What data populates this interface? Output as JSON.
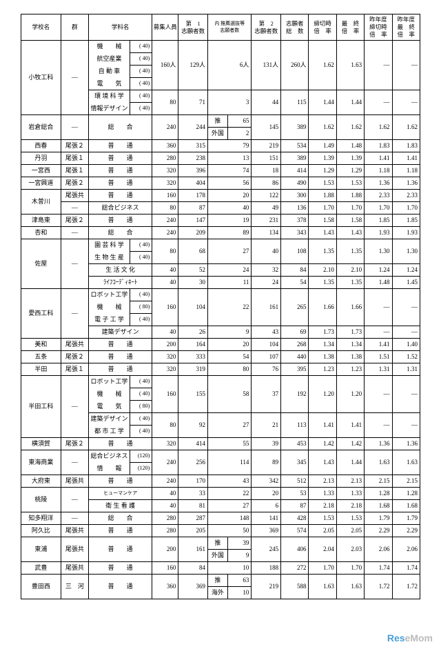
{
  "headers": {
    "school": "学校名",
    "group": "群",
    "dept": "学科名",
    "capacity": "募集人員",
    "app1": "第　1\n志願者数",
    "innerRec": "内 推薦選抜等\n志願者数",
    "app2": "第　2\n志願者数",
    "totalApp": "志願者\n総　数",
    "deadRate": "締切時\n倍　率",
    "finalRate": "最　終\n倍　率",
    "prevDead": "昨年度\n締切時\n倍　率",
    "prevFinal": "昨年度\n最　終\n倍　率"
  },
  "rows": [
    {
      "school": "小牧工科",
      "group": "—",
      "depts": [
        {
          "name": "機　　械",
          "cap": "( 40)"
        },
        {
          "name": "航空産業",
          "cap": "( 40)"
        },
        {
          "name": "自 動 車",
          "cap": "( 40)"
        },
        {
          "name": "電　　気",
          "cap": "( 40)"
        }
      ],
      "capSum": "160人",
      "a1": "129人",
      "rec": "6人",
      "a2": "131人",
      "tot": "260人",
      "dr": "1.62",
      "fr": "1.63",
      "pd": "—",
      "pf": "—"
    },
    {
      "depts": [
        {
          "name": "環 境 科 学",
          "cap": "( 40)"
        },
        {
          "name": "情報デザイン",
          "cap": "( 40)"
        }
      ],
      "capSum": "80",
      "a1": "71",
      "rec": "3",
      "a2": "44",
      "tot": "115",
      "dr": "1.44",
      "fr": "1.44",
      "pd": "—",
      "pf": "—"
    },
    {
      "school": "岩倉総合",
      "group": "—",
      "dept": "総　　合",
      "cap": "240",
      "a1": "244",
      "rec": [
        [
          "推",
          "65"
        ],
        [
          "外国",
          "2"
        ]
      ],
      "a2": "145",
      "tot": "389",
      "dr": "1.62",
      "fr": "1.62",
      "pd": "1.62",
      "pf": "1.62"
    },
    {
      "school": "西春",
      "group": "尾張２",
      "dept": "普　　通",
      "cap": "360",
      "a1": "315",
      "rec": "79",
      "a2": "219",
      "tot": "534",
      "dr": "1.49",
      "fr": "1.48",
      "pd": "1.83",
      "pf": "1.83"
    },
    {
      "school": "丹羽",
      "group": "尾張１",
      "dept": "普　　通",
      "cap": "280",
      "a1": "238",
      "rec": "13",
      "a2": "151",
      "tot": "389",
      "dr": "1.39",
      "fr": "1.39",
      "pd": "1.41",
      "pf": "1.41"
    },
    {
      "school": "一宮西",
      "group": "尾張１",
      "dept": "普　　通",
      "cap": "320",
      "a1": "396",
      "rec": "74",
      "a2": "18",
      "tot": "414",
      "dr": "1.29",
      "fr": "1.29",
      "pd": "1.18",
      "pf": "1.18"
    },
    {
      "school": "一宮興道",
      "group": "尾張２",
      "dept": "普　　通",
      "cap": "320",
      "a1": "404",
      "rec": "56",
      "a2": "86",
      "tot": "490",
      "dr": "1.53",
      "fr": "1.53",
      "pd": "1.36",
      "pf": "1.36"
    },
    {
      "school": "木曽川",
      "group": "尾張共",
      "dept": "普　　通",
      "cap": "160",
      "a1": "178",
      "rec": "20",
      "a2": "122",
      "tot": "300",
      "dr": "1.88",
      "fr": "1.88",
      "pd": "2.33",
      "pf": "2.33",
      "sub": {
        "group": "—",
        "dept": "総合ビジネス",
        "cap": "80",
        "a1": "87",
        "rec": "40",
        "a2": "49",
        "tot": "136",
        "dr": "1.70",
        "fr": "1.70",
        "pd": "1.70",
        "pf": "1.70"
      }
    },
    {
      "school": "津島東",
      "group": "尾張２",
      "dept": "普　　通",
      "cap": "240",
      "a1": "147",
      "rec": "19",
      "a2": "231",
      "tot": "378",
      "dr": "1.58",
      "fr": "1.58",
      "pd": "1.85",
      "pf": "1.85"
    },
    {
      "school": "杏和",
      "group": "—",
      "dept": "総　　合",
      "cap": "240",
      "a1": "209",
      "rec": "89",
      "a2": "134",
      "tot": "343",
      "dr": "1.43",
      "fr": "1.43",
      "pd": "1.93",
      "pf": "1.93"
    },
    {
      "school": "佐屋",
      "group": "—",
      "depts": [
        {
          "name": "園 芸 科 学",
          "cap": "( 40)"
        },
        {
          "name": "生 物 生 産",
          "cap": "( 40)"
        }
      ],
      "capSum": "80",
      "a1": "68",
      "rec": "27",
      "a2": "40",
      "tot": "108",
      "dr": "1.35",
      "fr": "1.35",
      "pd": "1.30",
      "pf": "1.30",
      "extra": [
        {
          "dept": "生 活 文 化",
          "cap": "40",
          "a1": "52",
          "rec": "24",
          "a2": "32",
          "tot": "84",
          "dr": "2.10",
          "fr": "2.10",
          "pd": "1.24",
          "pf": "1.24"
        },
        {
          "dept": "ﾗｲﾌｺｰﾃﾞｨﾈｰﾄ",
          "cap": "40",
          "a1": "30",
          "rec": "11",
          "a2": "24",
          "tot": "54",
          "dr": "1.35",
          "fr": "1.35",
          "pd": "1.48",
          "pf": "1.45"
        }
      ]
    },
    {
      "school": "愛西工科",
      "group": "—",
      "depts": [
        {
          "name": "ロボット工学",
          "cap": "( 40)"
        },
        {
          "name": "機　　械",
          "cap": "( 80)"
        },
        {
          "name": "電 子 工 学",
          "cap": "( 40)"
        }
      ],
      "capSum": "160",
      "a1": "104",
      "rec": "22",
      "a2": "161",
      "tot": "265",
      "dr": "1.66",
      "fr": "1.66",
      "pd": "—",
      "pf": "—",
      "extra": [
        {
          "dept": "建築デザイン",
          "cap": "40",
          "a1": "26",
          "rec": "9",
          "a2": "43",
          "tot": "69",
          "dr": "1.73",
          "fr": "1.73",
          "pd": "—",
          "pf": "—"
        }
      ]
    },
    {
      "school": "美和",
      "group": "尾張共",
      "dept": "普　　通",
      "cap": "200",
      "a1": "164",
      "rec": "20",
      "a2": "104",
      "tot": "268",
      "dr": "1.34",
      "fr": "1.34",
      "pd": "1.41",
      "pf": "1.40"
    },
    {
      "school": "五条",
      "group": "尾張２",
      "dept": "普　　通",
      "cap": "320",
      "a1": "333",
      "rec": "54",
      "a2": "107",
      "tot": "440",
      "dr": "1.38",
      "fr": "1.38",
      "pd": "1.51",
      "pf": "1.52"
    },
    {
      "school": "半田",
      "group": "尾張１",
      "dept": "普　　通",
      "cap": "320",
      "a1": "319",
      "rec": "80",
      "a2": "76",
      "tot": "395",
      "dr": "1.23",
      "fr": "1.23",
      "pd": "1.31",
      "pf": "1.31"
    },
    {
      "school": "半田工科",
      "group": "—",
      "depts": [
        {
          "name": "ロボット工学",
          "cap": "( 40)"
        },
        {
          "name": "機　　械",
          "cap": "( 40)"
        },
        {
          "name": "電　　気",
          "cap": "( 80)"
        }
      ],
      "capSum": "160",
      "a1": "155",
      "rec": "58",
      "a2": "37",
      "tot": "192",
      "dr": "1.20",
      "fr": "1.20",
      "pd": "—",
      "pf": "—"
    },
    {
      "depts": [
        {
          "name": "建築デザイン",
          "cap": "( 40)"
        },
        {
          "name": "都 市 工 学",
          "cap": "( 40)"
        }
      ],
      "capSum": "80",
      "a1": "92",
      "rec": "27",
      "a2": "21",
      "tot": "113",
      "dr": "1.41",
      "fr": "1.41",
      "pd": "—",
      "pf": "—"
    },
    {
      "school": "横須賀",
      "group": "尾張２",
      "dept": "普　　通",
      "cap": "320",
      "a1": "414",
      "rec": "55",
      "a2": "39",
      "tot": "453",
      "dr": "1.42",
      "fr": "1.42",
      "pd": "1.36",
      "pf": "1.36"
    },
    {
      "school": "東海商業",
      "group": "—",
      "depts": [
        {
          "name": "総合ビジネス",
          "cap": "(120)"
        },
        {
          "name": "情　　報",
          "cap": "(120)"
        }
      ],
      "capSum": "240",
      "a1": "256",
      "rec": "114",
      "a2": "89",
      "tot": "345",
      "dr": "1.43",
      "fr": "1.44",
      "pd": "1.63",
      "pf": "1.63"
    },
    {
      "school": "大府東",
      "group": "尾張共",
      "dept": "普　　通",
      "cap": "240",
      "a1": "170",
      "rec": "43",
      "a2": "342",
      "tot": "512",
      "dr": "2.13",
      "fr": "2.13",
      "pd": "2.15",
      "pf": "2.15"
    },
    {
      "school": "桃陵",
      "group": "—",
      "dept": "ヒューマンケア",
      "cap": "40",
      "a1": "33",
      "rec": "22",
      "a2": "20",
      "tot": "53",
      "dr": "1.33",
      "fr": "1.33",
      "pd": "1.28",
      "pf": "1.28",
      "sub": {
        "dept": "衛 生 看 護",
        "cap": "40",
        "a1": "81",
        "rec": "27",
        "a2": "6",
        "tot": "87",
        "dr": "2.18",
        "fr": "2.18",
        "pd": "1.68",
        "pf": "1.68"
      }
    },
    {
      "school": "知多翔洋",
      "group": "—",
      "dept": "総　　合",
      "cap": "280",
      "a1": "287",
      "rec": "148",
      "a2": "141",
      "tot": "428",
      "dr": "1.53",
      "fr": "1.53",
      "pd": "1.79",
      "pf": "1.79"
    },
    {
      "school": "阿久比",
      "group": "尾張共",
      "dept": "普　　通",
      "cap": "280",
      "a1": "205",
      "rec": "50",
      "a2": "369",
      "tot": "574",
      "dr": "2.05",
      "fr": "2.05",
      "pd": "2.29",
      "pf": "2.29"
    },
    {
      "school": "東浦",
      "group": "尾張共",
      "dept": "普　　通",
      "cap": "200",
      "a1": "161",
      "rec": [
        [
          "推",
          "39"
        ],
        [
          "外国",
          "9"
        ]
      ],
      "a2": "245",
      "tot": "406",
      "dr": "2.04",
      "fr": "2.03",
      "pd": "2.06",
      "pf": "2.06"
    },
    {
      "school": "武豊",
      "group": "尾張共",
      "dept": "普　　通",
      "cap": "160",
      "a1": "84",
      "rec": "10",
      "a2": "188",
      "tot": "272",
      "dr": "1.70",
      "fr": "1.70",
      "pd": "1.74",
      "pf": "1.74"
    },
    {
      "school": "豊田西",
      "group": "三　河",
      "dept": "普　　通",
      "cap": "360",
      "a1": "369",
      "rec": [
        [
          "推",
          "63"
        ],
        [
          "海外",
          "10"
        ]
      ],
      "a2": "219",
      "tot": "588",
      "dr": "1.63",
      "fr": "1.63",
      "pd": "1.72",
      "pf": "1.72"
    }
  ]
}
